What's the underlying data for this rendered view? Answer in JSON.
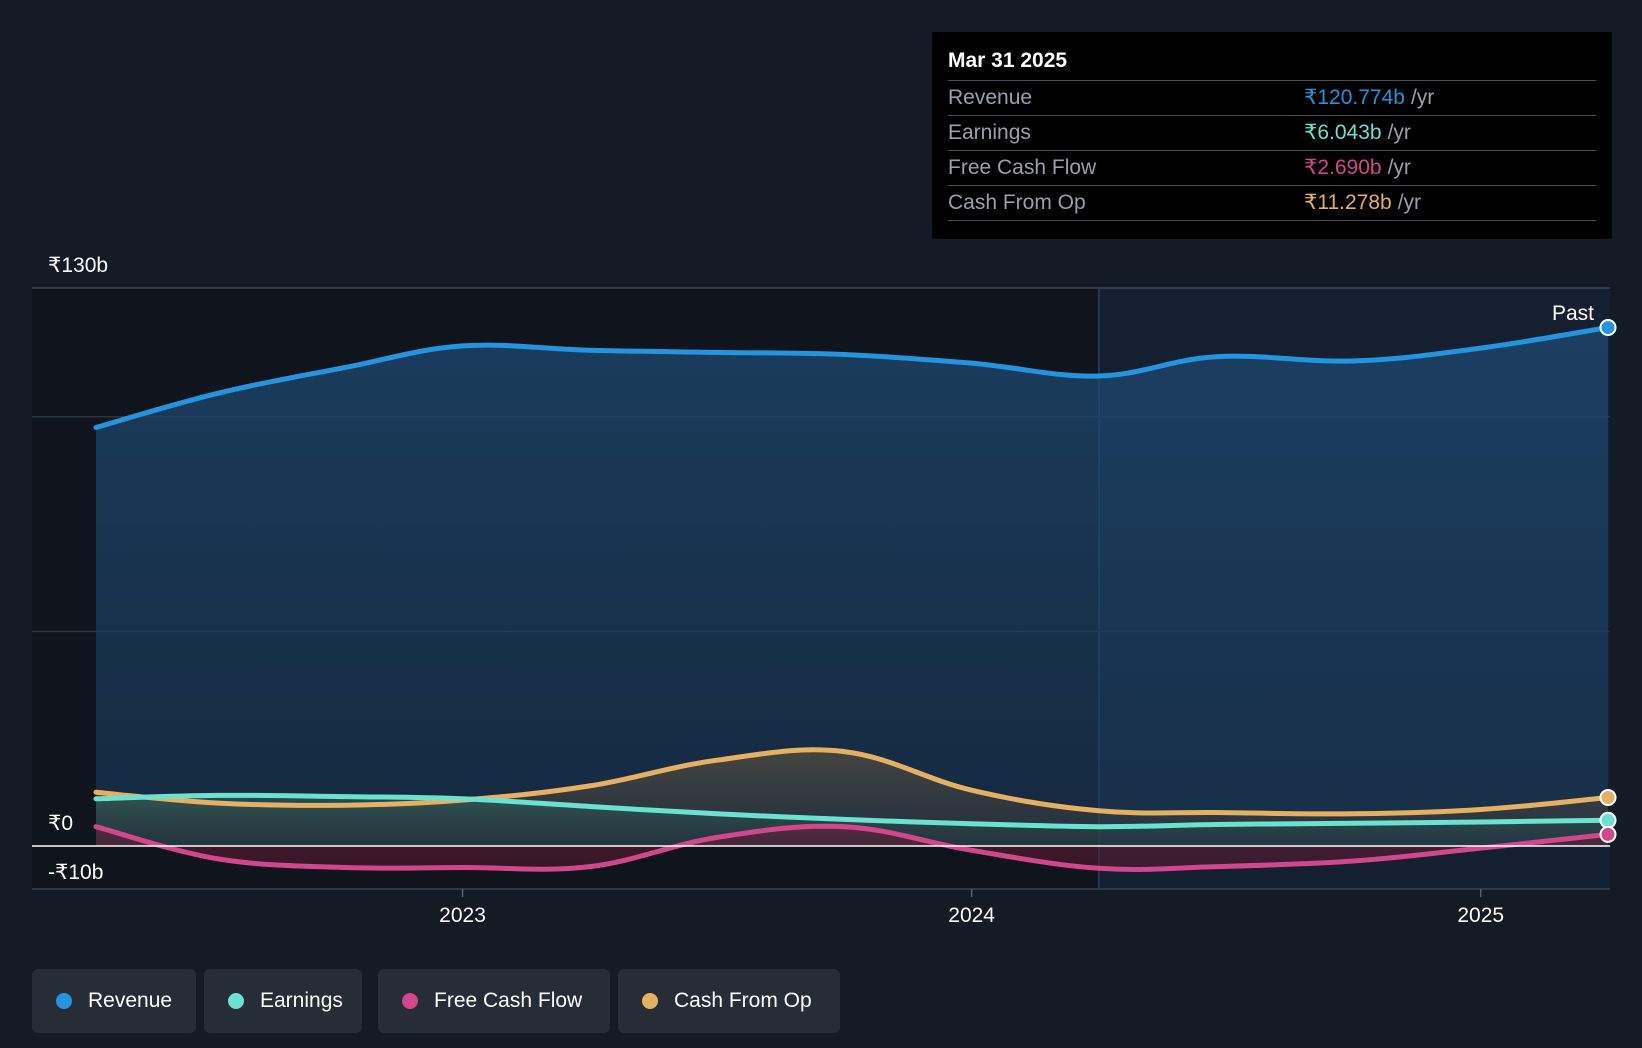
{
  "colors": {
    "revenue": "#2394df",
    "earnings": "#6ae2cf",
    "fcf": "#d0478a",
    "cfo": "#e6b062",
    "grid": "#2a3544",
    "axis": "#3a4250"
  },
  "tooltip": {
    "date": "Mar 31 2025",
    "rows": [
      {
        "label": "Revenue",
        "value": "₹120.774b",
        "unit": "/yr"
      },
      {
        "label": "Earnings",
        "value": "₹6.043b",
        "unit": "/yr"
      },
      {
        "label": "Free Cash Flow",
        "value": "₹2.690b",
        "unit": "/yr"
      },
      {
        "label": "Cash From Op",
        "value": "₹11.278b",
        "unit": "/yr"
      }
    ]
  },
  "legend": {
    "items": [
      {
        "label": "Revenue",
        "color": "#2394df"
      },
      {
        "label": "Earnings",
        "color": "#6ae2cf"
      },
      {
        "label": "Free Cash Flow",
        "color": "#d0478a"
      },
      {
        "label": "Cash From Op",
        "color": "#e6b062"
      }
    ]
  },
  "chart_data": {
    "type": "area",
    "y_tick_labels": [
      "₹130b",
      "₹0",
      "-₹10b"
    ],
    "ylim": [
      -10,
      130
    ],
    "x_tick_labels": [
      "2023",
      "2024",
      "2025"
    ],
    "x_ticks": [
      2023.0,
      2024.0,
      2025.0
    ],
    "xlim": [
      2022.28,
      2025.25
    ],
    "past_label": "Past",
    "past_divider_x": 2024.25,
    "series": [
      {
        "name": "Revenue",
        "key": "revenue",
        "x": [
          2022.28,
          2022.52,
          2022.77,
          2023.0,
          2023.25,
          2023.5,
          2023.75,
          2024.0,
          2024.25,
          2024.48,
          2024.75,
          2025.0,
          2025.25
        ],
        "values": [
          97.5,
          105.5,
          111.5,
          116.5,
          115.5,
          115.0,
          114.5,
          112.5,
          109.5,
          114.0,
          113.0,
          116.0,
          120.8
        ]
      },
      {
        "name": "Earnings",
        "key": "earnings",
        "x": [
          2022.28,
          2022.52,
          2022.77,
          2023.0,
          2023.25,
          2023.5,
          2023.75,
          2024.0,
          2024.25,
          2024.48,
          2024.75,
          2025.0,
          2025.25
        ],
        "values": [
          11.0,
          11.8,
          11.5,
          11.0,
          9.2,
          7.5,
          6.2,
          5.2,
          4.5,
          5.0,
          5.3,
          5.6,
          6.0
        ]
      },
      {
        "name": "Free Cash Flow",
        "key": "fcf",
        "x": [
          2022.28,
          2022.52,
          2022.77,
          2023.0,
          2023.25,
          2023.5,
          2023.75,
          2024.0,
          2024.25,
          2024.48,
          2024.75,
          2025.0,
          2025.25
        ],
        "values": [
          4.5,
          -3.0,
          -5.0,
          -5.0,
          -4.8,
          2.0,
          4.5,
          -1.0,
          -5.2,
          -4.8,
          -3.5,
          -0.5,
          2.7
        ]
      },
      {
        "name": "Cash From Op",
        "key": "cfo",
        "x": [
          2022.28,
          2022.52,
          2022.77,
          2023.0,
          2023.25,
          2023.5,
          2023.75,
          2024.0,
          2024.25,
          2024.48,
          2024.75,
          2025.0,
          2025.25
        ],
        "values": [
          12.5,
          10.0,
          9.5,
          10.7,
          14.0,
          20.0,
          22.0,
          13.0,
          8.2,
          7.8,
          7.5,
          8.5,
          11.3
        ]
      }
    ]
  }
}
